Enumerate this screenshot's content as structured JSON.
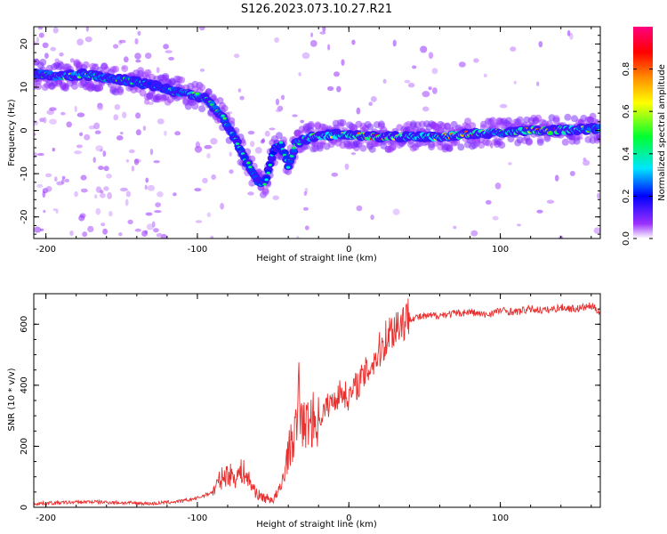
{
  "title": "S126.2023.073.10.27.R21",
  "chart_data": [
    {
      "type": "heatmap",
      "xlabel": "Height of straight line (km)",
      "ylabel": "Frequency (Hz)",
      "xlim": [
        -208,
        166
      ],
      "ylim": [
        -25,
        24
      ],
      "xticks": [
        -200,
        -100,
        0,
        100
      ],
      "yticks": [
        -20,
        -10,
        0,
        10,
        20
      ],
      "colorbar": {
        "label": "Normalized spectral amplitude",
        "range": [
          0.0,
          1.0
        ],
        "ticks": [
          0.0,
          0.2,
          0.4,
          0.6,
          0.8
        ],
        "colors": [
          "#ffffff",
          "#9b30ff",
          "#0000ff",
          "#00e5ff",
          "#00ff30",
          "#ffff00",
          "#ff8c00",
          "#ff0000",
          "#ff0080"
        ]
      },
      "ridge": [
        {
          "x": -205,
          "y": 13,
          "amp": 0.45
        },
        {
          "x": -190,
          "y": 12.5,
          "amp": 0.5
        },
        {
          "x": -175,
          "y": 13,
          "amp": 0.5
        },
        {
          "x": -160,
          "y": 12,
          "amp": 0.48
        },
        {
          "x": -145,
          "y": 11.5,
          "amp": 0.45
        },
        {
          "x": -130,
          "y": 10.5,
          "amp": 0.4
        },
        {
          "x": -115,
          "y": 9,
          "amp": 0.45
        },
        {
          "x": -105,
          "y": 8.5,
          "amp": 0.55
        },
        {
          "x": -95,
          "y": 7.5,
          "amp": 0.5
        },
        {
          "x": -85,
          "y": 4,
          "amp": 0.45
        },
        {
          "x": -75,
          "y": -2,
          "amp": 0.42
        },
        {
          "x": -68,
          "y": -7,
          "amp": 0.4
        },
        {
          "x": -60,
          "y": -12,
          "amp": 0.45
        },
        {
          "x": -55,
          "y": -12,
          "amp": 0.4
        },
        {
          "x": -50,
          "y": -5,
          "amp": 0.35
        },
        {
          "x": -45,
          "y": -3,
          "amp": 0.4
        },
        {
          "x": -40,
          "y": -8,
          "amp": 0.42
        },
        {
          "x": -35,
          "y": -3,
          "amp": 0.45
        },
        {
          "x": -25,
          "y": -1.5,
          "amp": 0.55
        },
        {
          "x": -10,
          "y": -1,
          "amp": 0.6
        },
        {
          "x": 0,
          "y": -1,
          "amp": 0.65
        },
        {
          "x": 20,
          "y": -1.5,
          "amp": 0.8
        },
        {
          "x": 40,
          "y": -1.5,
          "amp": 0.6
        },
        {
          "x": 60,
          "y": -1.5,
          "amp": 0.6
        },
        {
          "x": 80,
          "y": -0.8,
          "amp": 0.8
        },
        {
          "x": 100,
          "y": -0.5,
          "amp": 0.5
        },
        {
          "x": 120,
          "y": 0,
          "amp": 0.75
        },
        {
          "x": 135,
          "y": 0,
          "amp": 0.85
        },
        {
          "x": 150,
          "y": 0.2,
          "amp": 0.55
        },
        {
          "x": 166,
          "y": 0.5,
          "amp": 0.45
        }
      ]
    },
    {
      "type": "line",
      "xlabel": "Height of straight line (km)",
      "ylabel": "SNR (10 * v/v)",
      "xlim": [
        -208,
        166
      ],
      "ylim": [
        0,
        700
      ],
      "xticks": [
        -200,
        -100,
        0,
        100
      ],
      "yticks": [
        0,
        200,
        400,
        600
      ],
      "color": "#e8302f",
      "series": [
        {
          "x": [
            -208,
            -190,
            -170,
            -150,
            -130,
            -110,
            -100,
            -90,
            -85,
            -80,
            -75,
            -70,
            -65,
            -60,
            -55,
            -50,
            -45,
            -40,
            -35,
            -33,
            -30,
            -25,
            -20,
            -15,
            -10,
            -5,
            0,
            5,
            10,
            15,
            20,
            25,
            30,
            35,
            40,
            50,
            60,
            70,
            80,
            90,
            100,
            110,
            120,
            130,
            140,
            150,
            160,
            166
          ],
          "y": [
            12,
            15,
            18,
            15,
            12,
            20,
            30,
            50,
            90,
            110,
            100,
            120,
            80,
            40,
            30,
            25,
            60,
            180,
            250,
            370,
            260,
            290,
            280,
            330,
            350,
            380,
            360,
            400,
            430,
            470,
            510,
            560,
            590,
            610,
            620,
            625,
            630,
            635,
            640,
            630,
            645,
            640,
            650,
            645,
            655,
            650,
            660,
            640
          ]
        }
      ]
    }
  ]
}
